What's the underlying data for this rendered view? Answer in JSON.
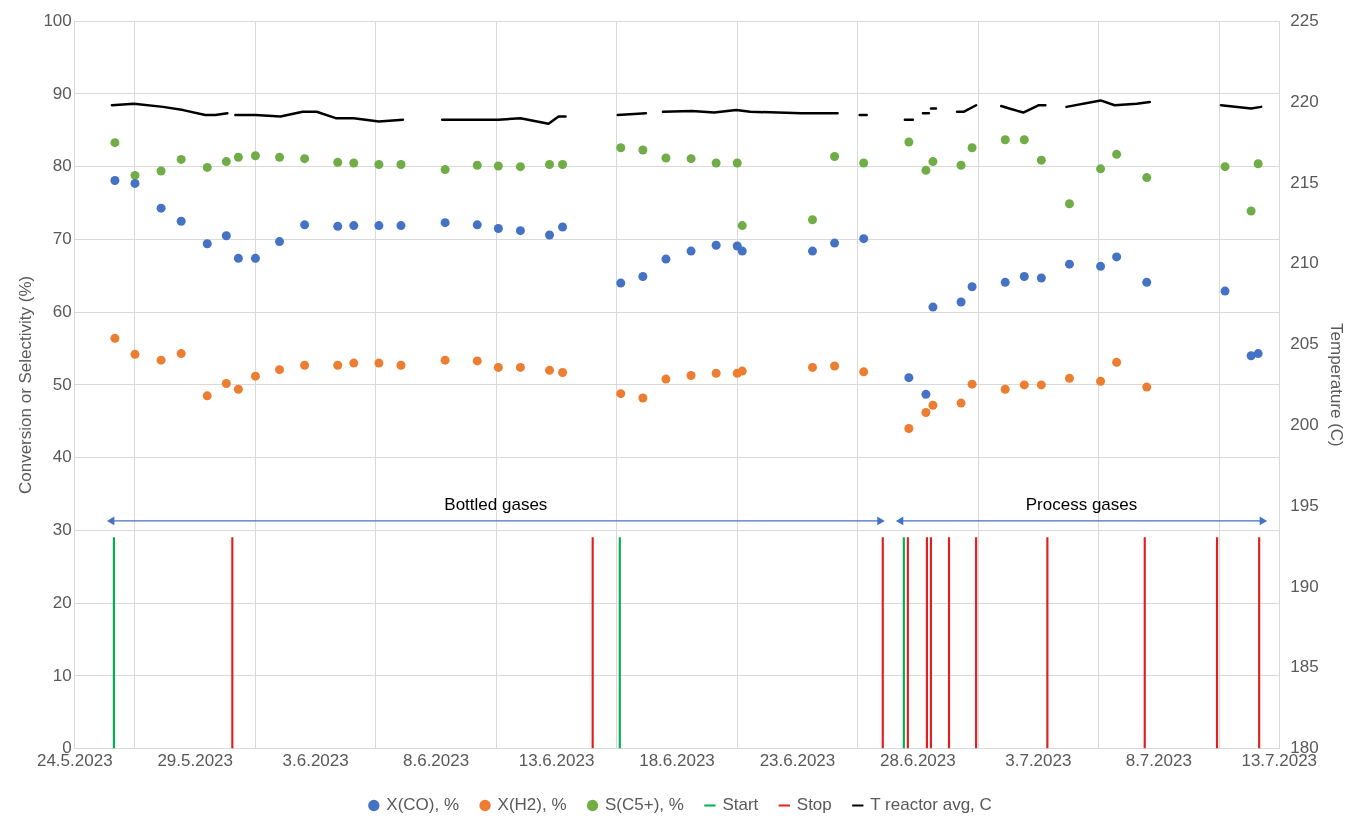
{
  "chart_data": {
    "type": "scatter",
    "ylabel": "Conversion or Selectivity (%)",
    "y2label": "Temperature (C)",
    "x": [
      "2023-05-25T16:00",
      "2023-05-26T12:00",
      "2023-05-27T14:00",
      "2023-05-28T10:00",
      "2023-05-29T12:00",
      "2023-05-30T07:00",
      "2023-05-30T19:00",
      "2023-05-31T12:00",
      "2023-06-01T12:00",
      "2023-06-02T13:00",
      "2023-06-03T22:00",
      "2023-06-04T14:00",
      "2023-06-05T15:00",
      "2023-06-06T13:00",
      "2023-06-08T09:00",
      "2023-06-09T17:00",
      "2023-06-10T14:00",
      "2023-06-11T12:00",
      "2023-06-12T17:00",
      "2023-06-13T06:00",
      "2023-06-15T16:00",
      "2023-06-16T14:00",
      "2023-06-17T13:00",
      "2023-06-18T14:00",
      "2023-06-19T15:00",
      "2023-06-20T12:00",
      "2023-06-20T17:00",
      "2023-06-23T15:00",
      "2023-06-24T13:00",
      "2023-06-25T18:00",
      "2023-06-27T15:00",
      "2023-06-28T08:00",
      "2023-06-28T15:00",
      "2023-06-29T19:00",
      "2023-06-30T06:00",
      "2023-07-01T15:00",
      "2023-07-02T10:00",
      "2023-07-03T03:00",
      "2023-07-04T07:00",
      "2023-07-05T14:00",
      "2023-07-06T06:00",
      "2023-07-07T12:00",
      "2023-07-10T18:00",
      "2023-07-11T20:00",
      "2023-07-12T03:00"
    ],
    "series": [
      {
        "name": "X(CO), %",
        "color": "#4472c4",
        "values": [
          78.1,
          77.7,
          74.3,
          72.5,
          69.4,
          70.5,
          67.4,
          67.4,
          69.7,
          72.0,
          71.8,
          71.9,
          71.9,
          71.9,
          72.3,
          72.0,
          71.5,
          71.2,
          70.6,
          71.7,
          64.0,
          64.9,
          67.3,
          68.4,
          69.2,
          69.1,
          68.4,
          68.4,
          69.5,
          70.1,
          51.0,
          48.7,
          60.7,
          61.4,
          63.5,
          64.1,
          64.9,
          64.7,
          66.6,
          66.3,
          67.6,
          64.1,
          62.9,
          54.0,
          54.3
        ]
      },
      {
        "name": "X(H2), %",
        "color": "#ed7d31",
        "values": [
          56.4,
          54.2,
          53.4,
          54.3,
          48.5,
          50.2,
          49.4,
          51.2,
          52.1,
          52.7,
          52.7,
          53.0,
          53.0,
          52.7,
          53.4,
          53.3,
          52.4,
          52.4,
          52.0,
          51.7,
          48.8,
          48.2,
          50.8,
          51.3,
          51.6,
          51.6,
          51.9,
          52.4,
          52.6,
          51.8,
          44.0,
          46.2,
          47.2,
          47.5,
          50.1,
          49.4,
          50.0,
          50.0,
          50.9,
          50.5,
          53.1,
          49.7,
          null,
          null,
          null
        ]
      },
      {
        "name": "S(C5+), %",
        "color": "#70ad47",
        "values": [
          83.3,
          78.8,
          79.4,
          81.0,
          79.9,
          80.7,
          81.3,
          81.5,
          81.3,
          81.1,
          80.6,
          80.5,
          80.3,
          80.3,
          79.6,
          80.2,
          80.1,
          80.0,
          80.3,
          80.3,
          82.6,
          82.3,
          81.2,
          81.1,
          80.5,
          80.5,
          71.9,
          72.7,
          81.4,
          80.5,
          83.4,
          79.5,
          80.7,
          80.2,
          82.6,
          83.7,
          83.7,
          80.9,
          74.9,
          79.7,
          81.7,
          78.5,
          80.0,
          73.9,
          80.4
        ]
      },
      {
        "name": "Start",
        "color": "#00b050",
        "type": "bar",
        "x": [
          "2023-05-25T15:00",
          "2023-06-15T15:00",
          "2023-06-27T10:00"
        ],
        "values": [
          29,
          29,
          29
        ]
      },
      {
        "name": "Stop",
        "color": "#e02020",
        "type": "bar",
        "x": [
          "2023-05-30T13:00",
          "2023-06-14T12:00",
          "2023-06-26T13:00",
          "2023-06-27T14:00",
          "2023-06-28T09:00",
          "2023-06-28T13:00",
          "2023-06-29T07:00",
          "2023-06-30T10:00",
          "2023-07-03T09:00",
          "2023-07-07T10:00",
          "2023-07-10T10:00",
          "2023-07-12T04:00"
        ],
        "values": [
          29,
          29,
          29,
          29,
          29,
          29,
          29,
          29,
          29,
          29,
          29,
          29
        ]
      },
      {
        "color": "#4472c4",
        "type": "line",
        "marker": "triangle",
        "x": [
          "2023-05-25T13:00",
          "2023-06-26T10:00"
        ],
        "values": [
          31.3,
          31.3
        ]
      },
      {
        "color": "#4472c4",
        "type": "line",
        "marker": "triangle",
        "x": [
          "2023-06-27T07:00",
          "2023-07-12T07:00"
        ],
        "values": [
          31.3,
          31.3
        ]
      },
      {
        "name": "T reactor avg, C",
        "color": "#000000",
        "type": "line",
        "axis": "y2",
        "marker": "none",
        "x": [
          "2023-05-25T13:00",
          "2023-05-26T11:00",
          "2023-05-27T16:00",
          "2023-05-28T12:00",
          "2023-05-29T10:00",
          "2023-05-29T20:00",
          "2023-05-30T08:00",
          "2023-05-30T10:00",
          "2023-05-30T16:00",
          "2023-05-31T12:00",
          "2023-06-01T13:00",
          "2023-06-02T11:00",
          "2023-06-03T01:00",
          "2023-06-03T20:00",
          "2023-06-04T14:00",
          "2023-06-05T15:00",
          "2023-06-06T15:00",
          "2023-06-07T12:00",
          "2023-06-08T06:00",
          "2023-06-09T17:00",
          "2023-06-10T14:00",
          "2023-06-11T12:00",
          "2023-06-12T16:00",
          "2023-06-13T02:00",
          "2023-06-13T09:00",
          "2023-06-14T12:00",
          "2023-06-15T13:00",
          "2023-06-16T17:00",
          "2023-06-17T00:00",
          "2023-06-17T10:00",
          "2023-06-18T15:00",
          "2023-06-19T13:00",
          "2023-06-20T11:00",
          "2023-06-21T01:00",
          "2023-06-23T04:00",
          "2023-06-23T15:00",
          "2023-06-24T16:00",
          "2023-06-25T06:00",
          "2023-06-25T14:00",
          "2023-06-25T21:00",
          "2023-06-26T12:00",
          "2023-06-27T11:00",
          "2023-06-27T19:00",
          "2023-06-28T00:00",
          "2023-06-28T05:00",
          "2023-06-28T11:00",
          "2023-06-28T12:00",
          "2023-06-28T13:00",
          "2023-06-28T18:00",
          "2023-06-29T06:00",
          "2023-06-29T15:00",
          "2023-06-29T22:00",
          "2023-06-30T10:00",
          "2023-06-30T18:00",
          "2023-07-01T11:00",
          "2023-07-01T19:00",
          "2023-07-02T09:00",
          "2023-07-03T00:00",
          "2023-07-03T07:00",
          "2023-07-03T16:00",
          "2023-07-04T04:00",
          "2023-07-05T14:00",
          "2023-07-06T04:00",
          "2023-07-07T02:00",
          "2023-07-07T15:00",
          "2023-07-09T00:00",
          "2023-07-10T14:00",
          "2023-07-11T20:00",
          "2023-07-12T06:00"
        ],
        "values": [
          219.8,
          219.9,
          219.7,
          219.5,
          219.2,
          219.2,
          219.3,
          null,
          219.2,
          219.2,
          219.1,
          219.4,
          219.4,
          219.0,
          219.0,
          218.8,
          218.9,
          null,
          218.9,
          218.9,
          218.9,
          219.0,
          218.65,
          219.1,
          219.1,
          null,
          219.2,
          219.3,
          null,
          219.4,
          219.45,
          219.35,
          219.5,
          219.4,
          219.3,
          219.3,
          219.3,
          null,
          219.2,
          219.2,
          null,
          218.9,
          218.9,
          null,
          219.3,
          219.3,
          null,
          219.6,
          219.6,
          null,
          219.4,
          219.4,
          219.8,
          null,
          219.75,
          219.6,
          219.35,
          219.8,
          219.8,
          null,
          219.7,
          220.1,
          219.8,
          219.9,
          220.0,
          null,
          219.8,
          219.6,
          219.7
        ]
      }
    ],
    "xlim": [
      "2023-05-24",
      "2023-07-13"
    ],
    "xticks": [
      {
        "value": "2023-05-24",
        "label": "24.5.2023"
      },
      {
        "value": "2023-05-29",
        "label": "29.5.2023"
      },
      {
        "value": "2023-06-03",
        "label": "3.6.2023"
      },
      {
        "value": "2023-06-08",
        "label": "8.6.2023"
      },
      {
        "value": "2023-06-13",
        "label": "13.6.2023"
      },
      {
        "value": "2023-06-18",
        "label": "18.6.2023"
      },
      {
        "value": "2023-06-23",
        "label": "23.6.2023"
      },
      {
        "value": "2023-06-28",
        "label": "28.6.2023"
      },
      {
        "value": "2023-07-03",
        "label": "3.7.2023"
      },
      {
        "value": "2023-07-08",
        "label": "8.7.2023"
      },
      {
        "value": "2023-07-13",
        "label": "13.7.2023"
      }
    ],
    "ylim": [
      0,
      100
    ],
    "yticks": [
      0,
      10,
      20,
      30,
      40,
      50,
      60,
      70,
      80,
      90,
      100
    ],
    "y2lim": [
      180,
      225
    ],
    "y2ticks": [
      180,
      185,
      190,
      195,
      200,
      205,
      210,
      215,
      220,
      225
    ],
    "annotations": [
      "Bottled gases",
      "Process gases"
    ],
    "grid": true,
    "legend": "bottom",
    "marker": "circle"
  }
}
